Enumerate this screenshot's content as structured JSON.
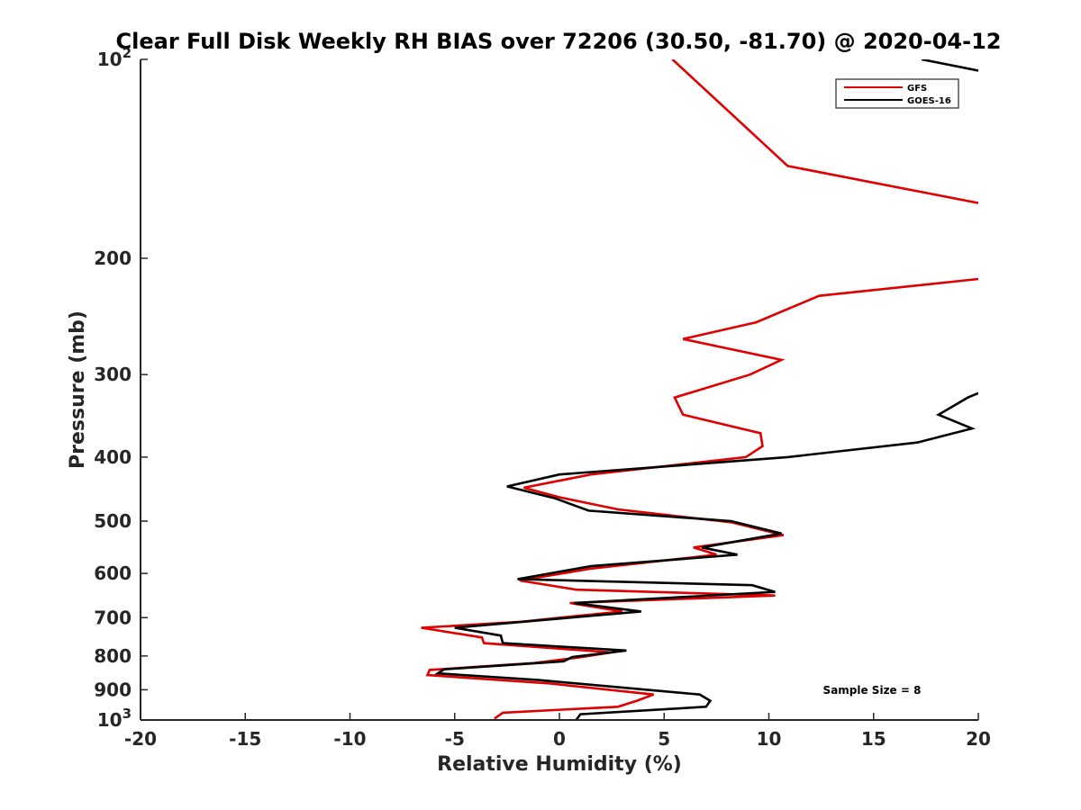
{
  "chart_data": {
    "type": "line",
    "title": "Clear Full Disk Weekly RH BIAS over 72206 (30.50, -81.70) @ 2020-04-12",
    "xlabel": "Relative Humidity (%)",
    "ylabel": "Pressure (mb)",
    "xlim": [
      -20,
      20
    ],
    "ylim": [
      100,
      1000
    ],
    "y_scale": "log",
    "y_reversed": true,
    "grid": false,
    "legend_position": "top-right",
    "x_ticks": [
      "-20",
      "-15",
      "-10",
      "-5",
      "0",
      "5",
      "10",
      "15",
      "20"
    ],
    "y_ticks": [
      {
        "base": "10",
        "exp": "2",
        "value": 100
      },
      {
        "label": "200",
        "value": 200
      },
      {
        "label": "300",
        "value": 300
      },
      {
        "label": "400",
        "value": 400
      },
      {
        "label": "500",
        "value": 500
      },
      {
        "label": "600",
        "value": 600
      },
      {
        "label": "700",
        "value": 700
      },
      {
        "label": "800",
        "value": 800
      },
      {
        "label": "900",
        "value": 900
      },
      {
        "base": "10",
        "exp": "3",
        "value": 1000
      }
    ],
    "annotation": "Sample Size = 8",
    "series": [
      {
        "name": "GFS",
        "color": "#e00000",
        "x": [
          5.4,
          10.9,
          20.0,
          null,
          20.0,
          12.4,
          9.4,
          5.9,
          10.6,
          9.1,
          5.5,
          5.9,
          9.6,
          9.7,
          8.9,
          1.5,
          -1.7,
          0.0,
          2.8,
          8.2,
          10.7,
          6.4,
          7.5,
          1.5,
          -1.9,
          0.8,
          10.3,
          0.5,
          3.0,
          1.0,
          -1.8,
          -6.6,
          -3.7,
          -3.6,
          2.5,
          0.8,
          -1.2,
          -6.2,
          -6.3,
          -0.5,
          4.5,
          3.7,
          2.8,
          -2.7,
          -3.1
        ],
        "y": [
          100,
          145,
          165,
          null,
          215,
          228,
          250,
          265,
          285,
          300,
          325,
          345,
          368,
          385,
          400,
          425,
          445,
          460,
          480,
          502,
          525,
          548,
          562,
          590,
          615,
          635,
          648,
          665,
          685,
          695,
          710,
          725,
          750,
          765,
          790,
          805,
          820,
          840,
          855,
          880,
          915,
          935,
          955,
          975,
          995
        ]
      },
      {
        "name": "GOES-16",
        "color": "#000000",
        "x": [
          17.3,
          20.0,
          null,
          20.0,
          19.5,
          18.1,
          19.7,
          17.1,
          10.9,
          0.0,
          -2.5,
          -0.2,
          1.4,
          8.2,
          10.6,
          6.8,
          8.5,
          1.5,
          -2.0,
          9.2,
          10.3,
          0.7,
          3.9,
          0.5,
          -5.0,
          -2.8,
          -2.7,
          3.2,
          0.6,
          0.2,
          -5.5,
          -5.8,
          -1.0,
          6.7,
          7.2,
          7.0,
          1.0,
          0.8
        ],
        "y": [
          100,
          104,
          null,
          320,
          325,
          345,
          362,
          380,
          400,
          425,
          443,
          462,
          482,
          500,
          522,
          548,
          562,
          585,
          612,
          625,
          640,
          665,
          685,
          700,
          725,
          745,
          765,
          785,
          803,
          815,
          838,
          850,
          870,
          915,
          935,
          955,
          980,
          1000
        ]
      }
    ]
  }
}
